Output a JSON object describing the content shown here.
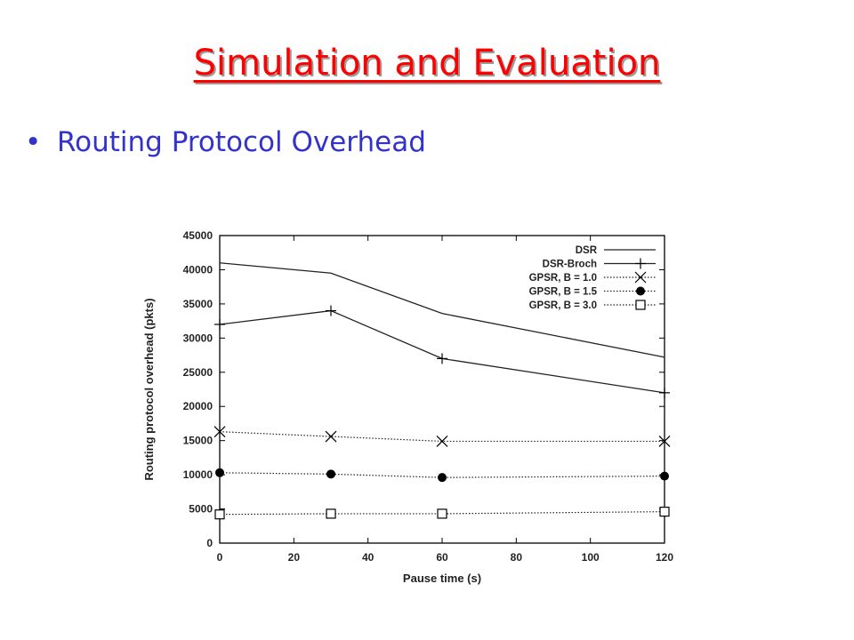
{
  "slide": {
    "title": "Simulation and Evaluation",
    "bullet": "Routing Protocol Overhead"
  },
  "chart_data": {
    "type": "line",
    "xlabel": "Pause time (s)",
    "ylabel": "Routing protocol overhead (pkts)",
    "xlim": [
      0,
      120
    ],
    "ylim": [
      0,
      45000
    ],
    "xticks": [
      0,
      20,
      40,
      60,
      80,
      100,
      120
    ],
    "yticks": [
      0,
      5000,
      10000,
      15000,
      20000,
      25000,
      30000,
      35000,
      40000,
      45000
    ],
    "legend_position": "top-right",
    "grid": false,
    "series": [
      {
        "name": "DSR",
        "marker": "none",
        "style": "solid",
        "x": [
          0,
          30,
          60,
          120
        ],
        "y": [
          41000,
          39500,
          33600,
          27200
        ]
      },
      {
        "name": "DSR-Broch",
        "marker": "plus",
        "style": "solid",
        "x": [
          0,
          30,
          60,
          120
        ],
        "y": [
          32000,
          34000,
          27000,
          22000
        ]
      },
      {
        "name": "GPSR, B = 1.0",
        "marker": "cross",
        "style": "dotted",
        "x": [
          0,
          30,
          60,
          120
        ],
        "y": [
          16300,
          15600,
          14900,
          14900
        ]
      },
      {
        "name": "GPSR, B = 1.5",
        "marker": "dot",
        "style": "dotted",
        "x": [
          0,
          30,
          60,
          120
        ],
        "y": [
          10300,
          10100,
          9600,
          9800
        ]
      },
      {
        "name": "GPSR, B = 3.0",
        "marker": "square",
        "style": "dotted",
        "x": [
          0,
          30,
          60,
          120
        ],
        "y": [
          4200,
          4300,
          4300,
          4600
        ]
      }
    ]
  }
}
